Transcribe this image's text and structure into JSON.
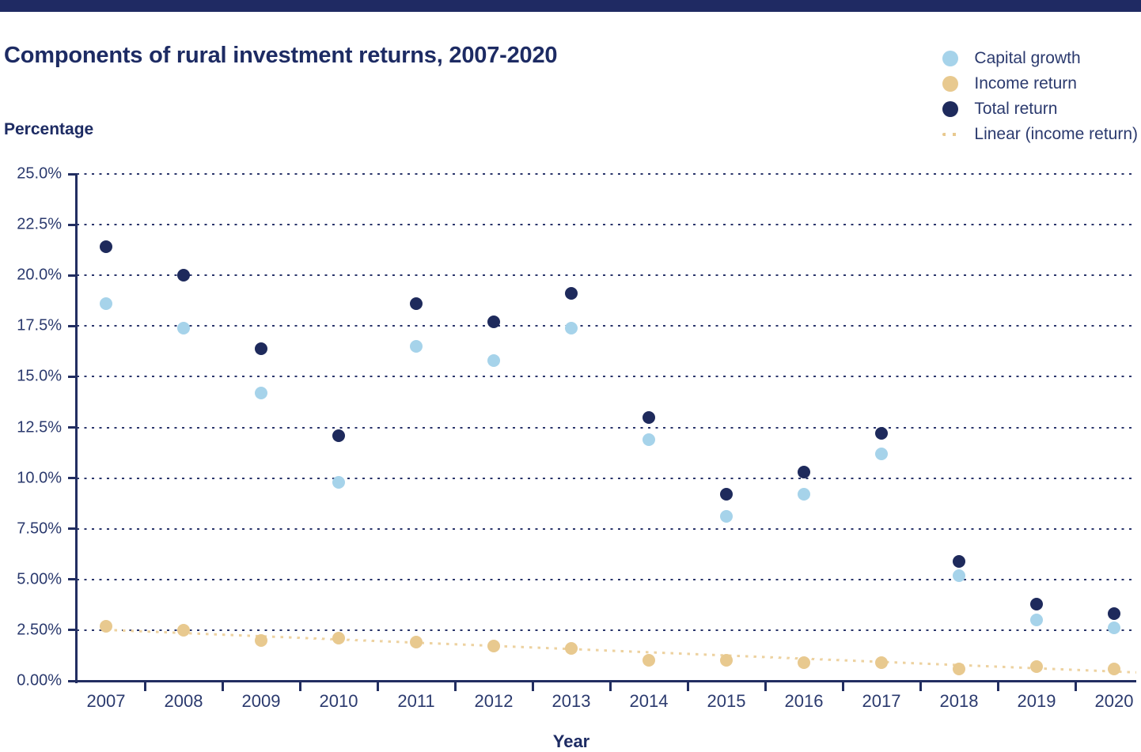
{
  "title": "Components of rural investment returns, 2007-2020",
  "y_axis": {
    "title": "Percentage",
    "tick_labels": [
      "25.0%",
      "22.5%",
      "20.0%",
      "17.5%",
      "15.0%",
      "12.5%",
      "10.0%",
      "7.50%",
      "5.00%",
      "2.50%",
      "0.00%"
    ]
  },
  "x_axis": {
    "title": "Year",
    "tick_labels": [
      "2007",
      "2008",
      "2009",
      "2010",
      "2011",
      "2012",
      "2013",
      "2014",
      "2015",
      "2016",
      "2017",
      "2018",
      "2019",
      "2020"
    ]
  },
  "legend": {
    "position": "top-right",
    "items": [
      {
        "label": "Capital growth",
        "marker": "circle",
        "color": "#a6d3ea"
      },
      {
        "label": "Income return",
        "marker": "circle",
        "color": "#e8c98f"
      },
      {
        "label": "Total return",
        "marker": "circle",
        "color": "#1e2a5c"
      },
      {
        "label": "Linear (income return)",
        "marker": "dotted-line",
        "color": "#e8c98f"
      }
    ]
  },
  "colors": {
    "top_bar": "#1f2a63",
    "axis": "#222e61",
    "gridline": "#2a356b",
    "capital_growth": "#a6d3ea",
    "income_return": "#e8c98f",
    "total_return": "#1e2a5c",
    "trend": "#edd2a0",
    "text": "#2b3a6e"
  },
  "chart_data": {
    "type": "scatter",
    "title": "Components of rural investment returns, 2007-2020",
    "xlabel": "Year",
    "ylabel": "Percentage",
    "ylim": [
      0,
      25
    ],
    "ytick_step": 2.5,
    "grid": "horizontal-dotted",
    "legend_position": "top-right",
    "categories": [
      2007,
      2008,
      2009,
      2010,
      2011,
      2012,
      2013,
      2014,
      2015,
      2016,
      2017,
      2018,
      2019,
      2020
    ],
    "series": [
      {
        "name": "Capital growth",
        "color": "#a6d3ea",
        "values": [
          18.6,
          17.4,
          14.2,
          9.8,
          16.5,
          15.8,
          17.4,
          11.9,
          8.1,
          9.2,
          11.2,
          5.2,
          3.0,
          2.6
        ]
      },
      {
        "name": "Income return",
        "color": "#e8c98f",
        "values": [
          2.7,
          2.5,
          2.0,
          2.1,
          1.9,
          1.7,
          1.6,
          1.0,
          1.0,
          0.9,
          0.9,
          0.6,
          0.7,
          0.6
        ]
      },
      {
        "name": "Total return",
        "color": "#1e2a5c",
        "values": [
          21.4,
          20.0,
          16.4,
          12.1,
          18.6,
          17.7,
          19.1,
          13.0,
          9.2,
          10.3,
          12.2,
          5.9,
          3.8,
          3.3
        ]
      }
    ],
    "trendline": {
      "name": "Linear (income return)",
      "series": "Income return",
      "style": "dotted",
      "color": "#edd2a0",
      "y_start": 2.5,
      "y_end": 0.4
    }
  }
}
